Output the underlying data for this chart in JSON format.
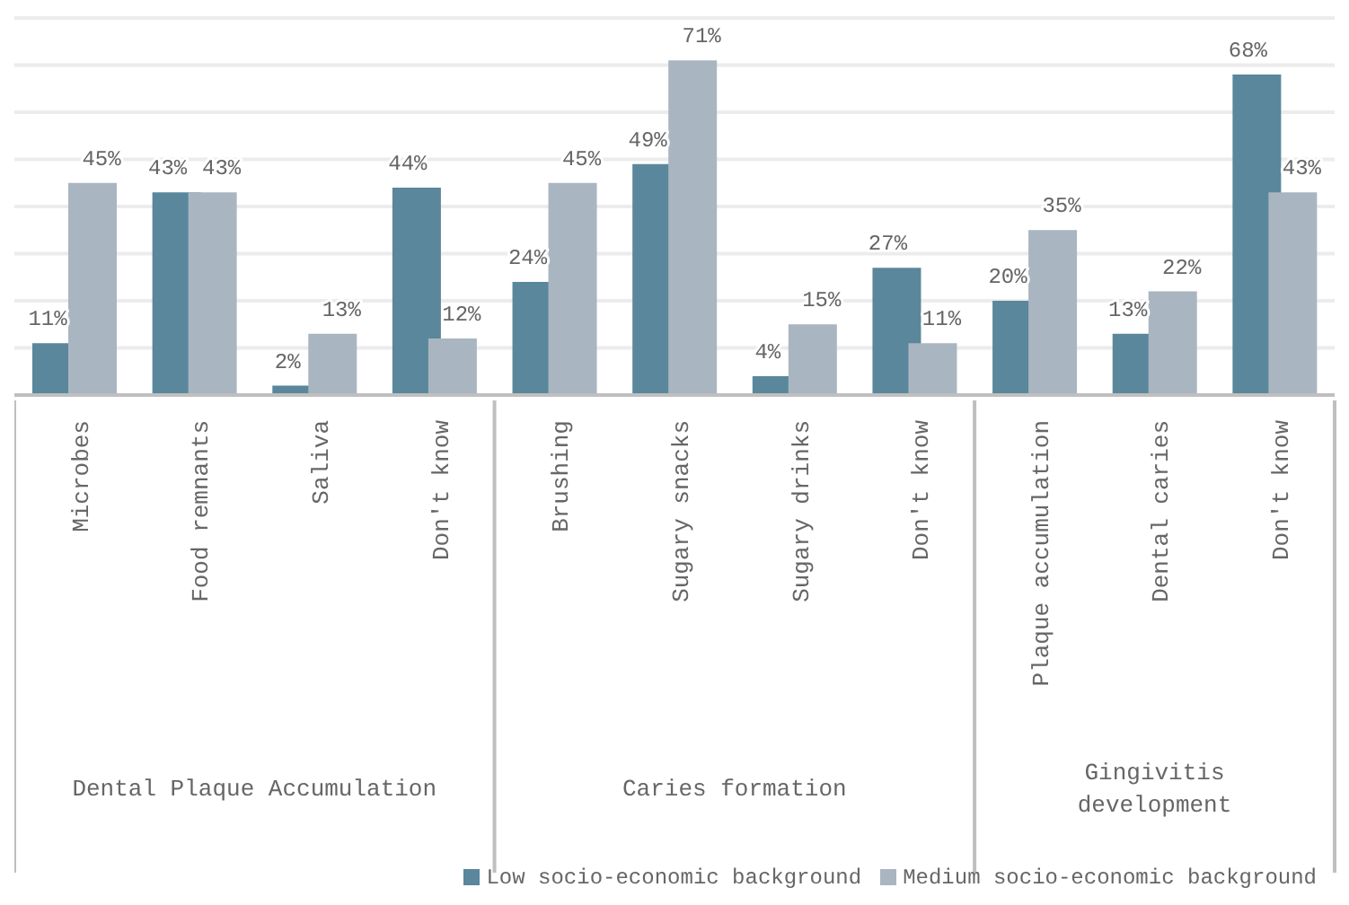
{
  "chart_data": {
    "type": "bar",
    "categories": [
      "Microbes",
      "Food remnants",
      "Saliva",
      "Don't know",
      "Brushing",
      "Sugary snacks",
      "Sugary drinks",
      "Don't know",
      "Plaque accumulation",
      "Dental caries",
      "Don't know"
    ],
    "series": [
      {
        "name": "Low socio-economic background",
        "color": "#5a879b",
        "values": [
          11,
          43,
          2,
          44,
          24,
          49,
          4,
          27,
          20,
          13,
          68
        ],
        "value_labels": [
          "11%",
          "43%",
          "2%",
          "44%",
          "24%",
          "49%",
          "4%",
          "27%",
          "20%",
          "13%",
          "68%"
        ]
      },
      {
        "name": "Medium socio-economic background",
        "color": "#a9b6c1",
        "values": [
          45,
          43,
          13,
          12,
          45,
          71,
          15,
          11,
          35,
          22,
          43
        ],
        "value_labels": [
          "45%",
          "43%",
          "13%",
          "12%",
          "45%",
          "71%",
          "15%",
          "11%",
          "35%",
          "22%",
          "43%"
        ]
      }
    ],
    "ylim": [
      0,
      80
    ],
    "yticks": [
      {
        "value": 0,
        "label": null
      },
      {
        "value": 10,
        "label": null
      },
      {
        "value": 20,
        "label": null
      },
      {
        "value": 30,
        "label": null
      },
      {
        "value": 40,
        "label": null
      },
      {
        "value": 50,
        "label": null
      },
      {
        "value": 60,
        "label": null
      },
      {
        "value": 70,
        "label": null
      },
      {
        "value": 80,
        "label": null
      }
    ],
    "tick_labels": "x",
    "grid": "y",
    "legend": "bottom right",
    "annotations": [
      "Dental Plaque Accumulation",
      "Caries formation",
      "Gingivitis development"
    ]
  }
}
